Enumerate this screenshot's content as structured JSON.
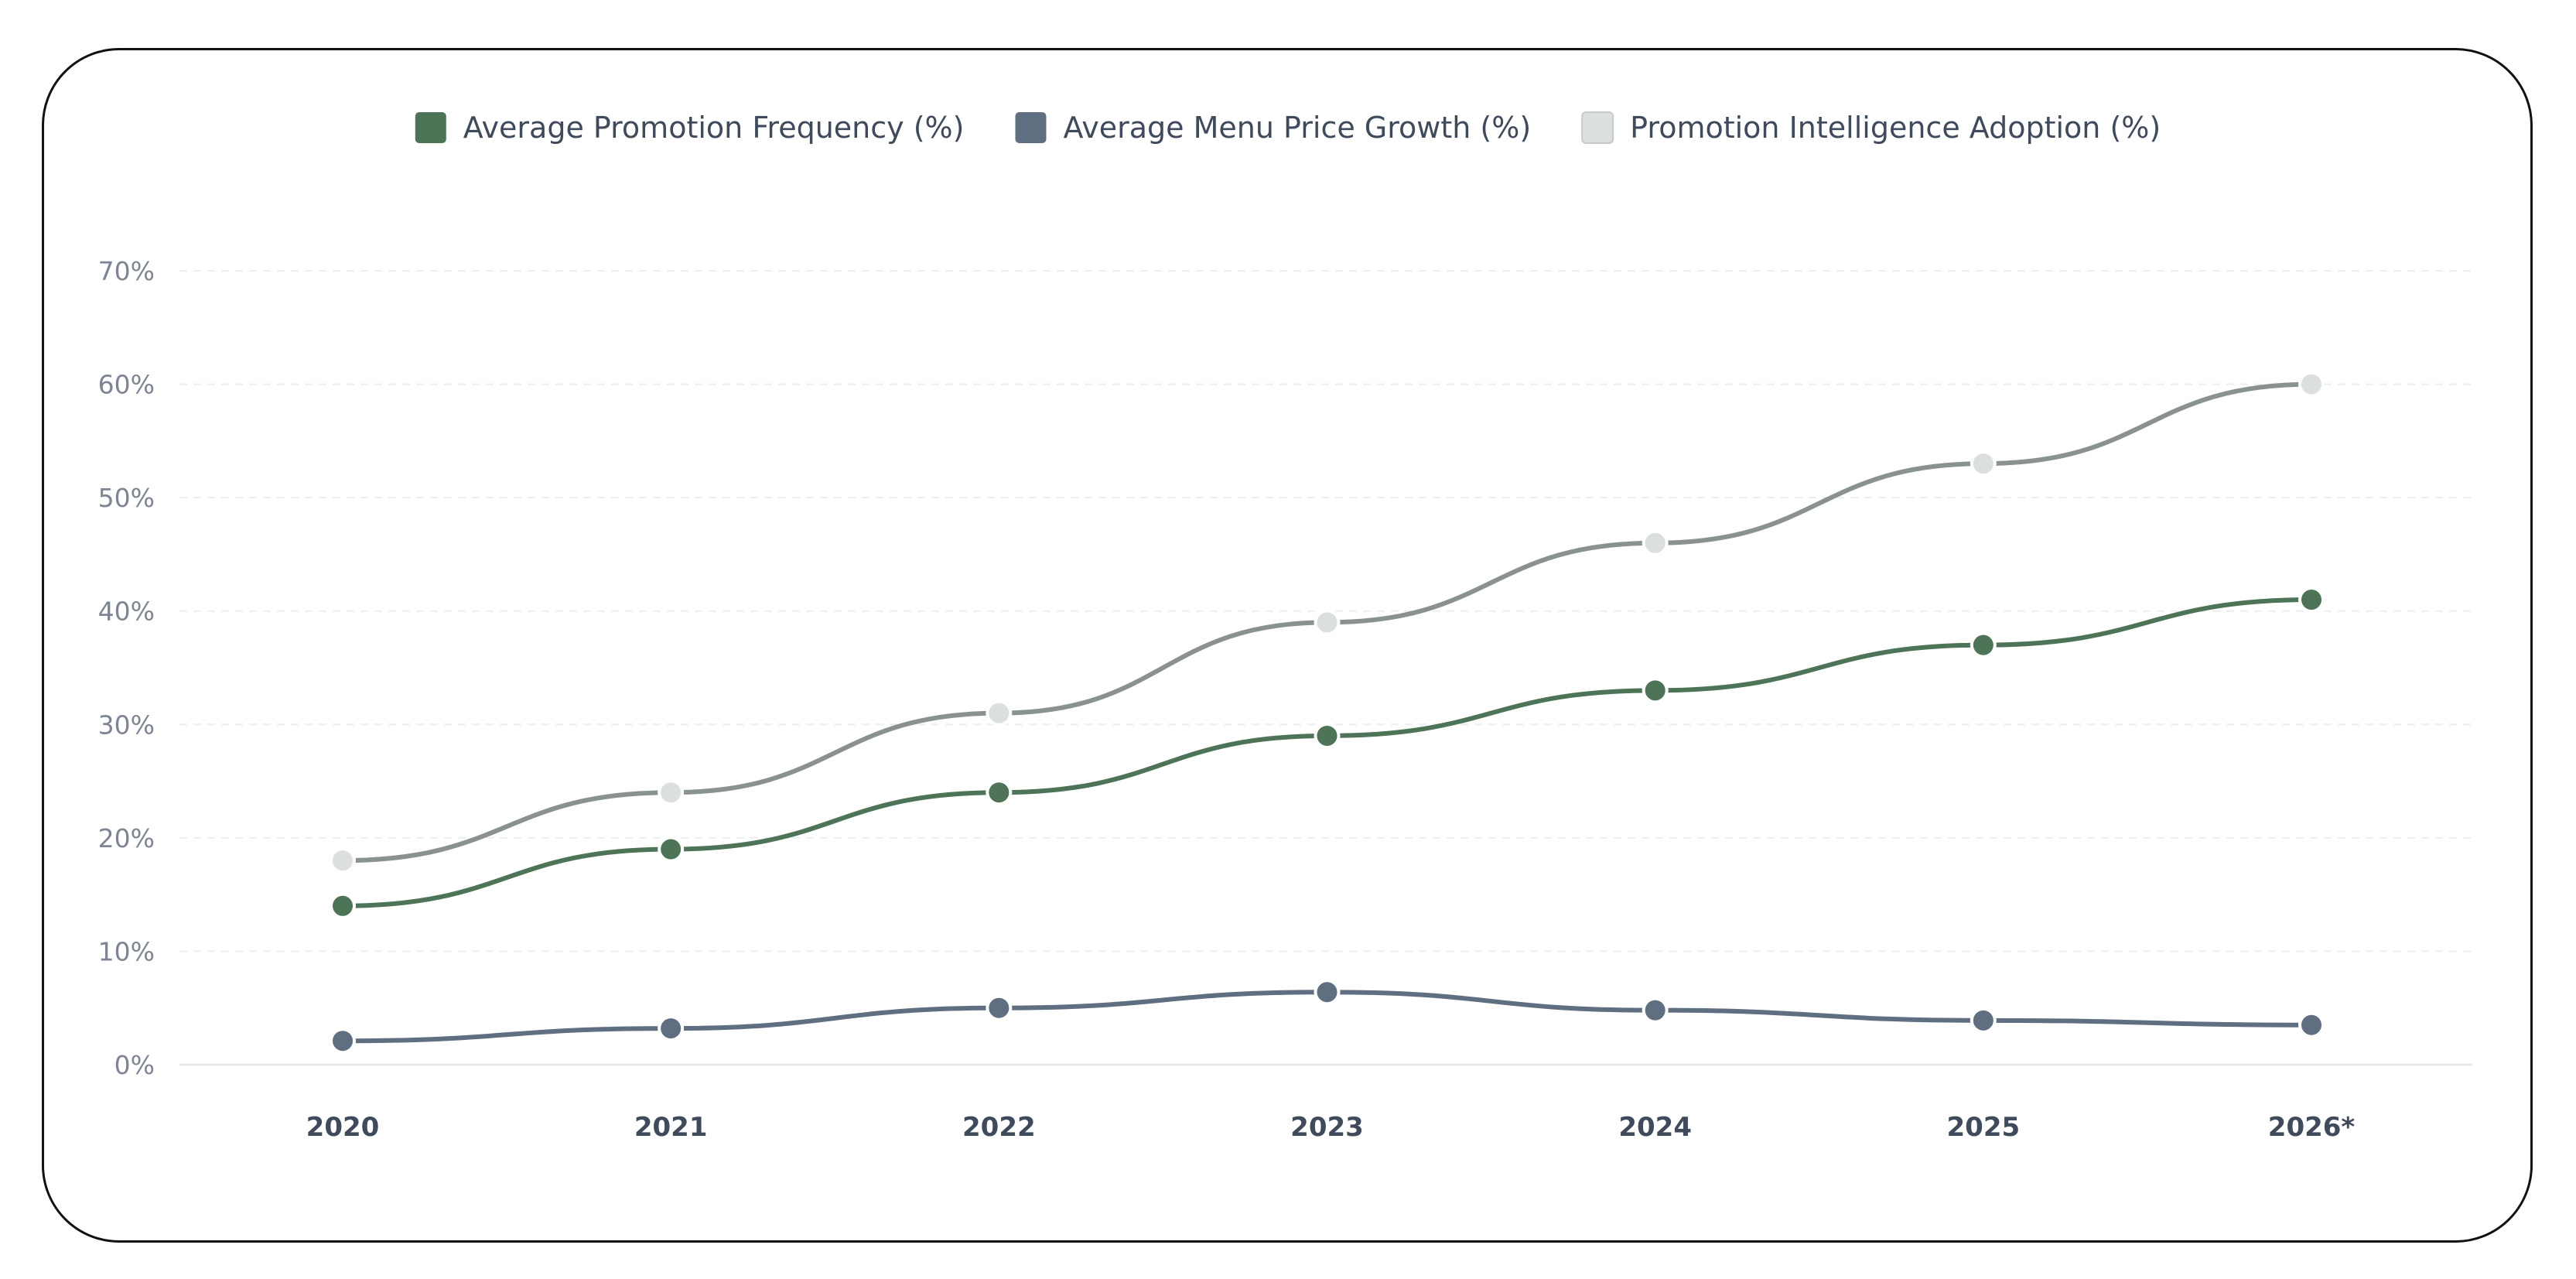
{
  "chart_data": {
    "type": "line",
    "x": [
      "2020",
      "2021",
      "2022",
      "2023",
      "2024",
      "2025",
      "2026*"
    ],
    "series": [
      {
        "name": "Average Promotion Frequency (%)",
        "values": [
          14,
          19,
          24,
          29,
          33,
          37,
          41
        ],
        "legend_color": "#4e7458",
        "line_color": "#4e7458",
        "marker_color": "#4e7458"
      },
      {
        "name": "Average Menu Price Growth (%)",
        "values": [
          2.1,
          3.2,
          5.0,
          6.4,
          4.8,
          3.9,
          3.5
        ],
        "legend_color": "#5f6e80",
        "line_color": "#5f6e80",
        "marker_color": "#5f6e80"
      },
      {
        "name": "Promotion Intelligence Adoption (%)",
        "values": [
          18,
          24,
          31,
          39,
          46,
          53,
          60
        ],
        "legend_color": "#dbe0dc",
        "line_color": "#8a928e",
        "marker_color": "#dbe0dc"
      }
    ],
    "y_ticks": [
      "0%",
      "10%",
      "20%",
      "30%",
      "40%",
      "50%",
      "60%",
      "70%"
    ],
    "ylim": [
      0,
      70
    ],
    "grid": true,
    "grid_style": "dashed-horizontal",
    "legend_position": "top-center",
    "smooth": true
  }
}
